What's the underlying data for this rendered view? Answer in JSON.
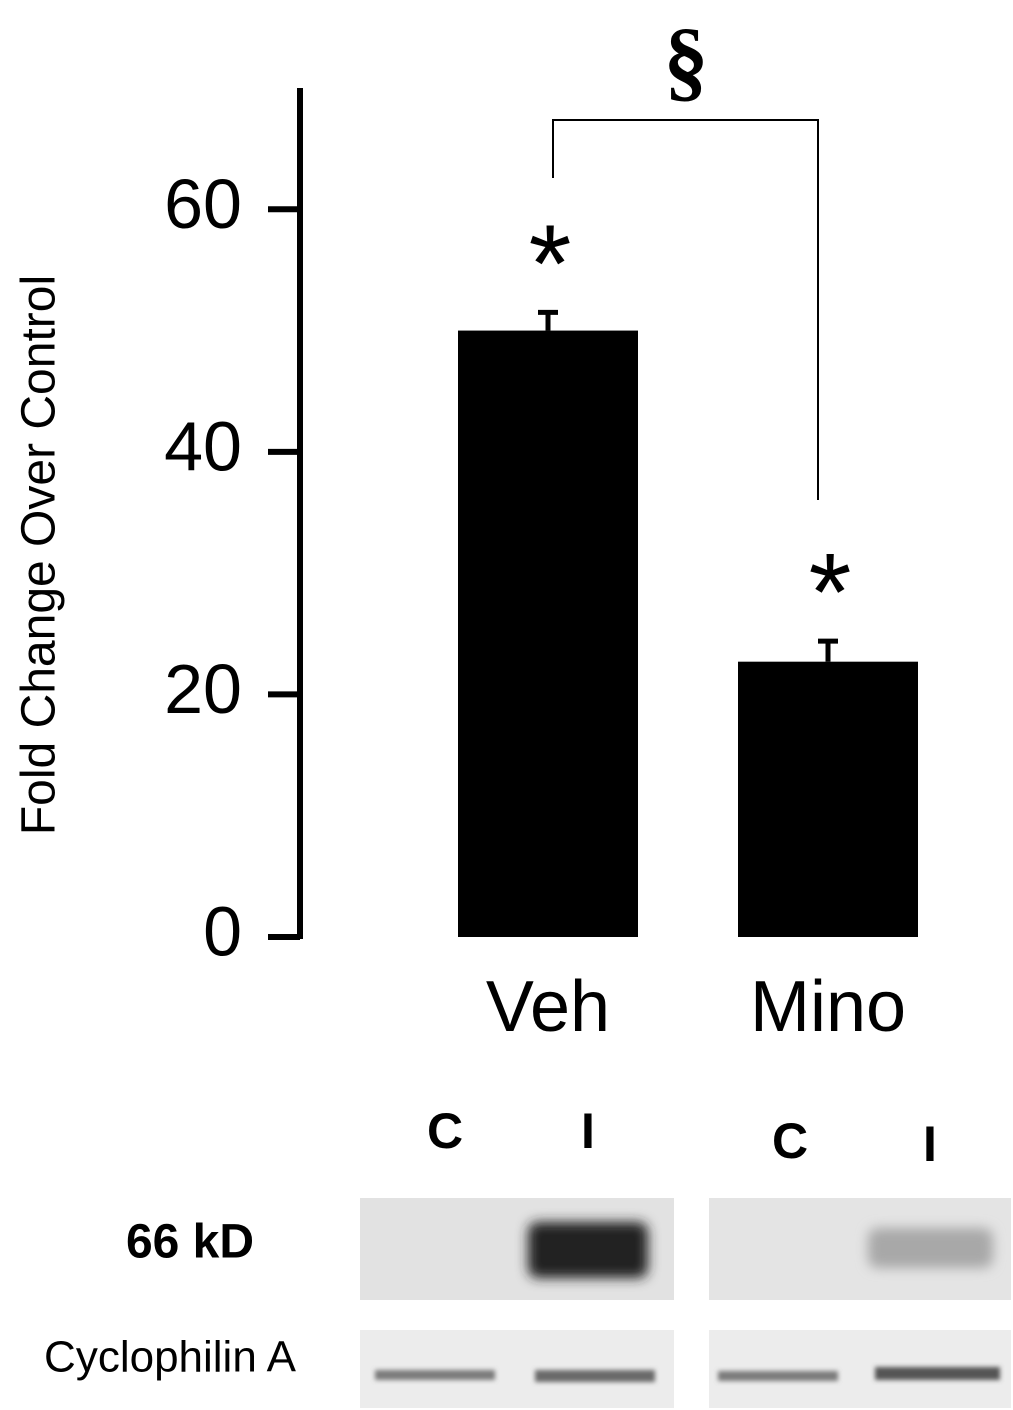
{
  "chart_data": {
    "type": "bar",
    "ylabel": "Fold Change Over Control",
    "categories": [
      "Veh",
      "Mino"
    ],
    "values": [
      50,
      22.7
    ],
    "errors": [
      1.5,
      1.7
    ],
    "color": "#000000",
    "ylim": [
      0,
      70
    ],
    "yticks": [
      0,
      20,
      40,
      60
    ],
    "markers": [
      "*",
      "*"
    ],
    "bracket_label": "§"
  },
  "blot": {
    "lanes": [
      "C",
      "I",
      "C",
      "I"
    ],
    "rows": [
      "66 kD",
      "Cyclophilin A"
    ]
  }
}
